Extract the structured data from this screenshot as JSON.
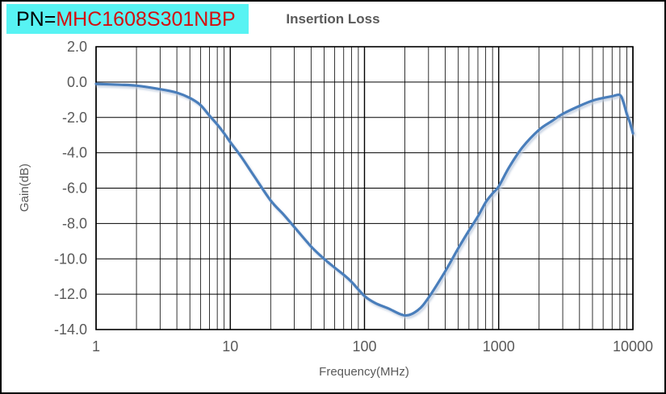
{
  "header": {
    "pn_prefix": "PN=",
    "pn_value": "MHC1608S301NBP",
    "pn_bg_color": "#57f3f3",
    "pn_prefix_color": "#000000",
    "pn_value_color": "#d40f0f"
  },
  "colors": {
    "text": "#595959",
    "grid": "#000000",
    "plot_border": "#000000",
    "background": "#ffffff",
    "curve": "#4a7ebb",
    "curve_shadow": "#b9c8dc"
  },
  "chart_data": {
    "type": "line",
    "title": "Insertion Loss",
    "xlabel": "Frequency(MHz)",
    "ylabel": "Gain(dB)",
    "x_scale": "log",
    "xlim": [
      1,
      10000
    ],
    "ylim": [
      -14,
      2
    ],
    "x_ticks": [
      1,
      10,
      100,
      1000,
      10000
    ],
    "x_tick_labels": [
      "1",
      "10",
      "100",
      "1000",
      "10000"
    ],
    "y_ticks": [
      2,
      0,
      -2,
      -4,
      -6,
      -8,
      -10,
      -12,
      -14
    ],
    "y_tick_labels": [
      "2.0",
      "0.0",
      "-2.0",
      "-4.0",
      "-6.0",
      "-8.0",
      "-10.0",
      "-12.0",
      "-14.0"
    ],
    "grid": {
      "x_minor_log": true,
      "y_step": 2,
      "color": "#000000"
    },
    "legend": "none",
    "series": [
      {
        "name": "Insertion Loss",
        "color": "#4a7ebb",
        "points": [
          [
            1,
            -0.1
          ],
          [
            1.5,
            -0.15
          ],
          [
            2,
            -0.2
          ],
          [
            3,
            -0.4
          ],
          [
            4,
            -0.6
          ],
          [
            5,
            -0.9
          ],
          [
            6,
            -1.3
          ],
          [
            7,
            -1.9
          ],
          [
            8,
            -2.4
          ],
          [
            9,
            -2.9
          ],
          [
            10,
            -3.4
          ],
          [
            12,
            -4.2
          ],
          [
            15,
            -5.3
          ],
          [
            20,
            -6.7
          ],
          [
            25,
            -7.5
          ],
          [
            30,
            -8.2
          ],
          [
            40,
            -9.3
          ],
          [
            50,
            -10.0
          ],
          [
            60,
            -10.5
          ],
          [
            70,
            -10.9
          ],
          [
            80,
            -11.3
          ],
          [
            100,
            -12.1
          ],
          [
            120,
            -12.5
          ],
          [
            150,
            -12.8
          ],
          [
            200,
            -13.2
          ],
          [
            250,
            -12.9
          ],
          [
            300,
            -12.2
          ],
          [
            400,
            -10.7
          ],
          [
            500,
            -9.4
          ],
          [
            600,
            -8.4
          ],
          [
            700,
            -7.6
          ],
          [
            800,
            -6.8
          ],
          [
            900,
            -6.3
          ],
          [
            1000,
            -5.9
          ],
          [
            1200,
            -4.8
          ],
          [
            1500,
            -3.7
          ],
          [
            2000,
            -2.7
          ],
          [
            2500,
            -2.2
          ],
          [
            3000,
            -1.8
          ],
          [
            4000,
            -1.35
          ],
          [
            5000,
            -1.05
          ],
          [
            6000,
            -0.9
          ],
          [
            7000,
            -0.8
          ],
          [
            8000,
            -0.73
          ],
          [
            8500,
            -1.15
          ],
          [
            9000,
            -1.8
          ],
          [
            9500,
            -2.3
          ],
          [
            10000,
            -2.9
          ]
        ]
      }
    ]
  }
}
